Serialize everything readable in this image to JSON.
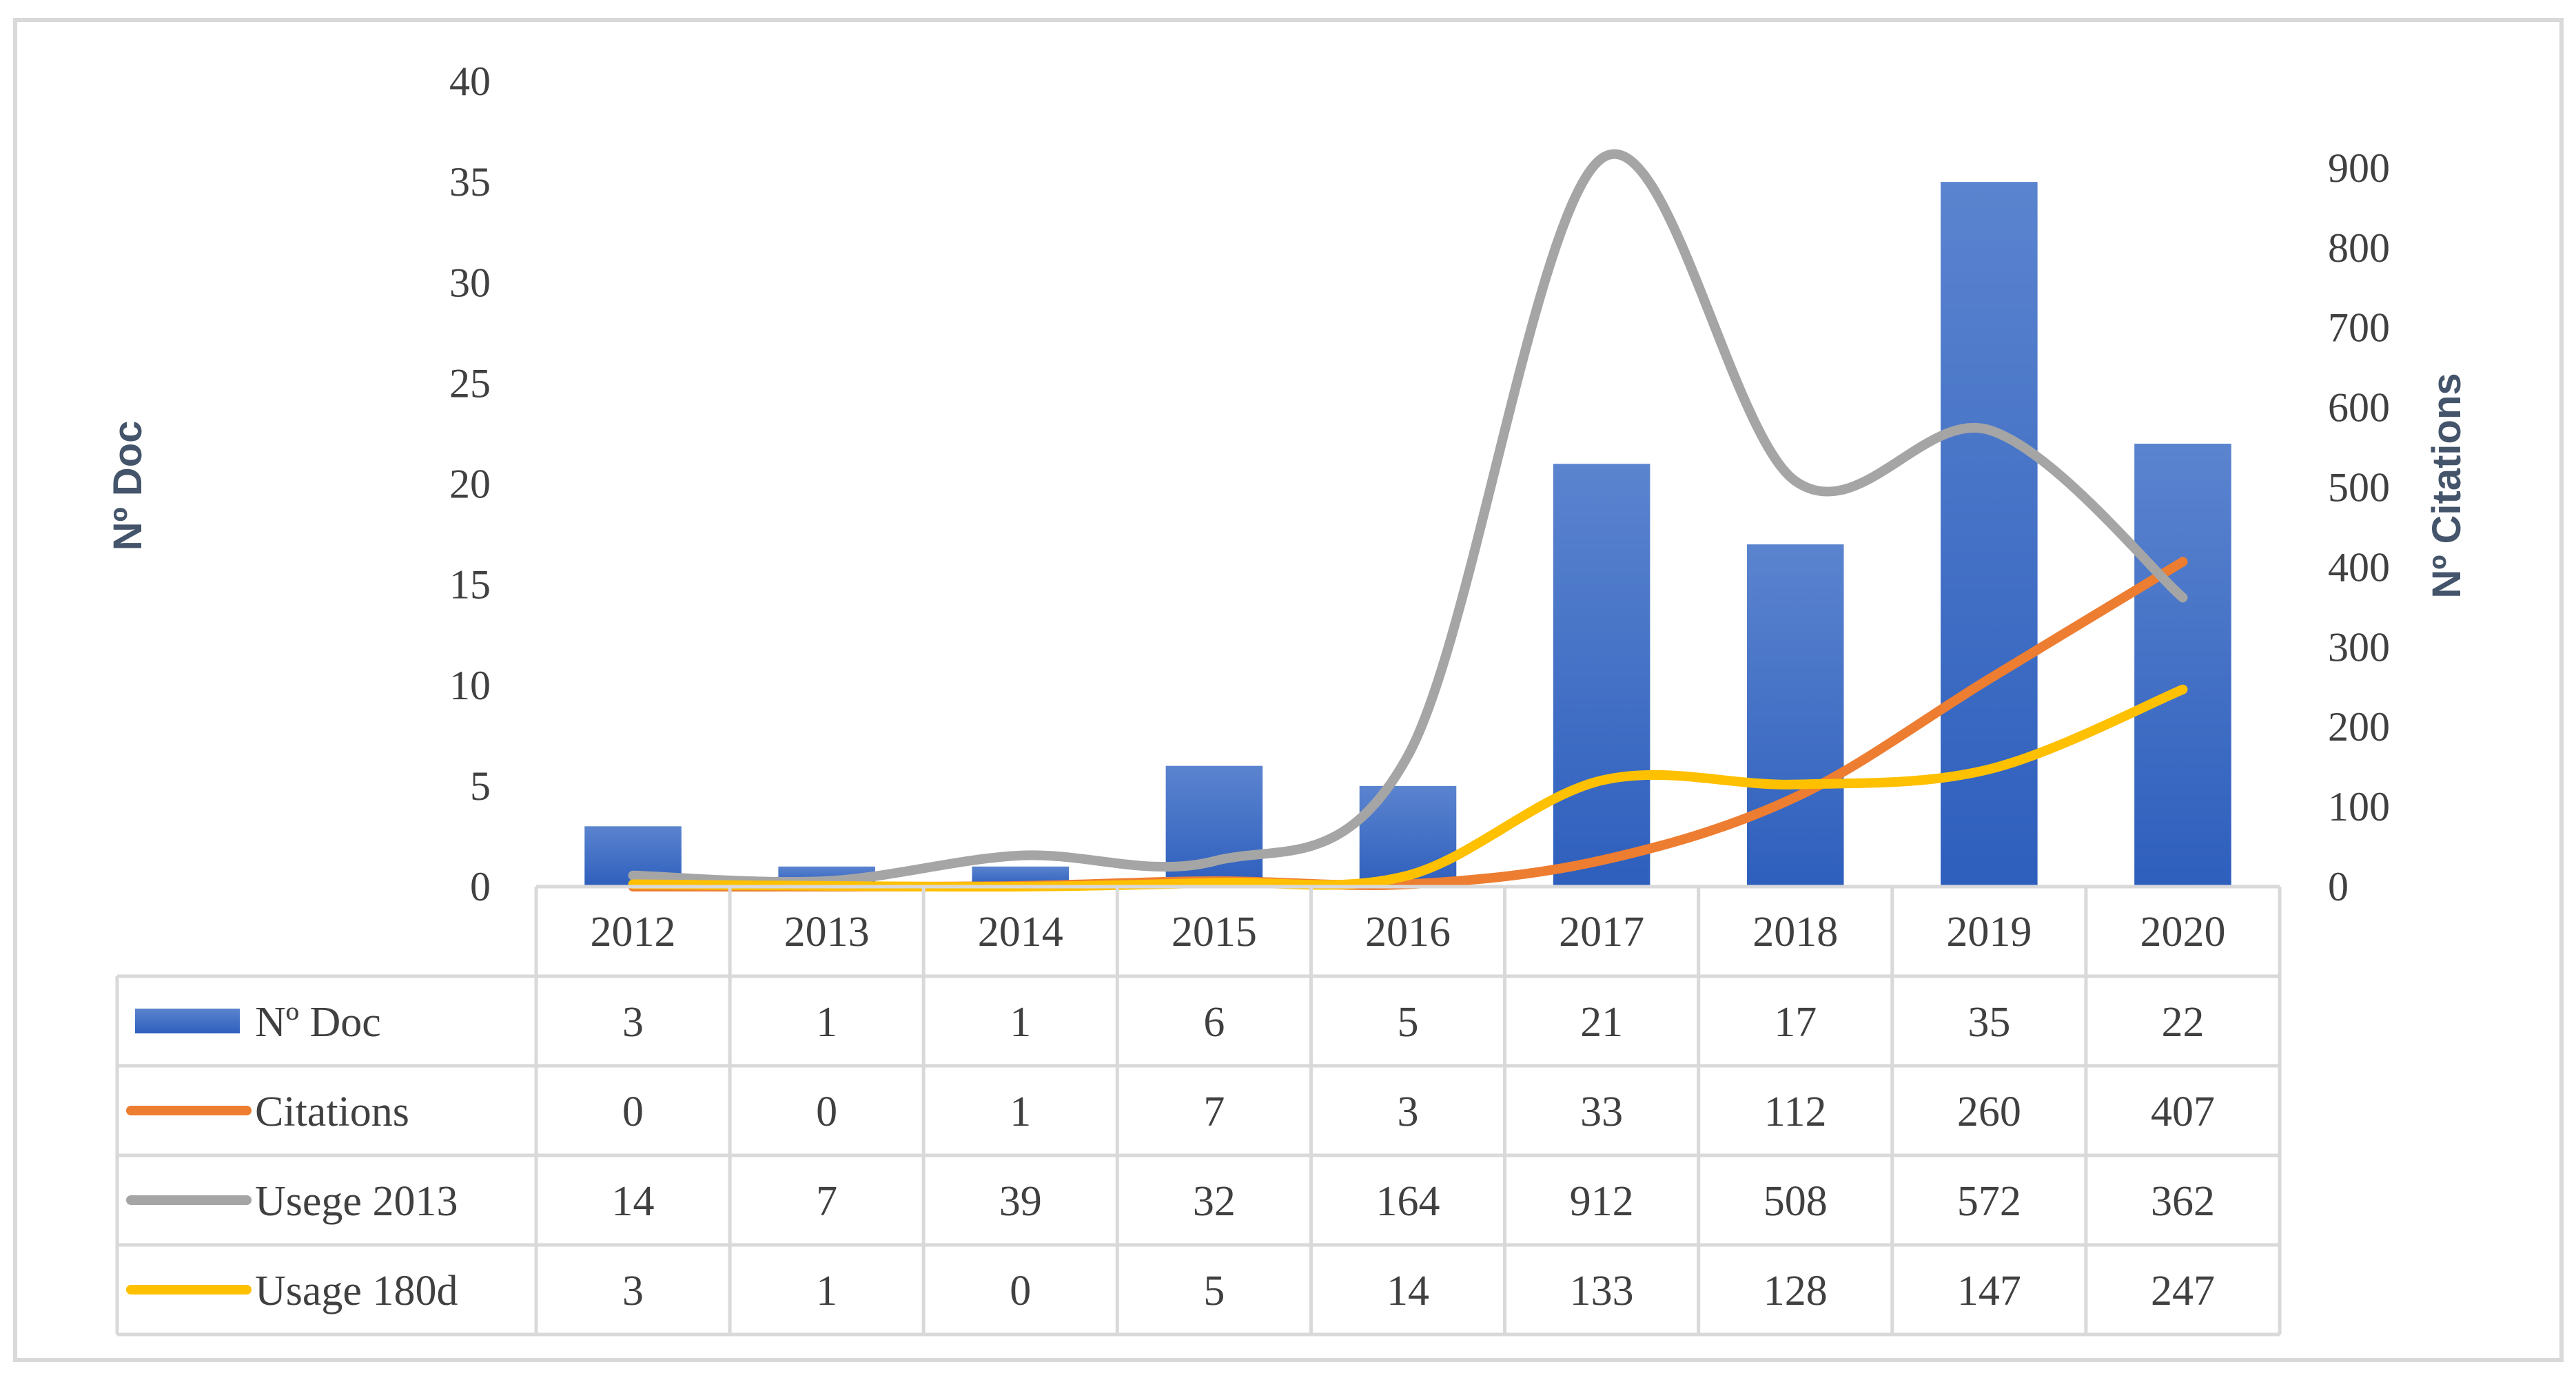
{
  "chart_data": {
    "type": "bar",
    "categories": [
      "2012",
      "2013",
      "2014",
      "2015",
      "2016",
      "2017",
      "2018",
      "2019",
      "2020"
    ],
    "y_left_label": "Nº Doc",
    "y_right_label": "Nº Citations",
    "y_left_ticks": [
      "0",
      "5",
      "10",
      "15",
      "20",
      "25",
      "30",
      "35",
      "40"
    ],
    "y_right_ticks": [
      "0",
      "100",
      "200",
      "300",
      "400",
      "500",
      "600",
      "700",
      "800",
      "900"
    ],
    "ylim_left": [
      0,
      40
    ],
    "ylim_right": [
      0,
      950
    ],
    "grid": false,
    "legend_placement": "data table",
    "series": [
      {
        "name": "Nº Doc",
        "kind": "bar",
        "axis": "left",
        "color": "#4472c4",
        "values": [
          3,
          1,
          1,
          6,
          5,
          21,
          17,
          35,
          22
        ]
      },
      {
        "name": "Citations",
        "kind": "line",
        "axis": "right",
        "color": "#ed7d31",
        "values": [
          0,
          0,
          1,
          7,
          3,
          33,
          112,
          260,
          407
        ]
      },
      {
        "name": "Usege 2013",
        "kind": "line",
        "axis": "right",
        "color": "#a5a5a5",
        "values": [
          14,
          7,
          39,
          32,
          164,
          912,
          508,
          572,
          362
        ]
      },
      {
        "name": "Usage 180d",
        "kind": "line",
        "axis": "right",
        "color": "#ffc000",
        "values": [
          3,
          1,
          0,
          5,
          14,
          133,
          128,
          147,
          247
        ]
      }
    ]
  }
}
